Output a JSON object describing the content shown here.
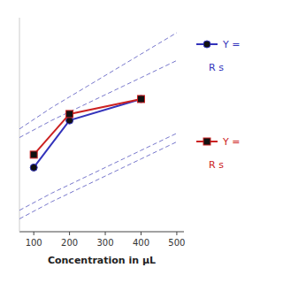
{
  "chart_data": {
    "type": "line",
    "xlabel": "Concentration in μL",
    "x": [
      100,
      200,
      400
    ],
    "xlim": [
      60,
      520
    ],
    "xticks": [
      100,
      200,
      300,
      400,
      500
    ],
    "ylim": [
      0.0,
      1.0
    ],
    "tick_labels": "x",
    "legend": "right",
    "series": [
      {
        "name": "Y =",
        "color": "#3333bb",
        "marker": "circle",
        "values": [
          0.3,
          0.52,
          0.62
        ]
      },
      {
        "name": "Y =",
        "color": "#cc2222",
        "marker": "square",
        "values": [
          0.36,
          0.55,
          0.62
        ]
      },
      {
        "color": "#7777cc",
        "line_style": "dashed",
        "x": [
          60,
          150,
          200,
          250,
          300,
          350,
          400,
          450,
          500
        ],
        "values": [
          0.48,
          0.58,
          0.63,
          0.68,
          0.73,
          0.78,
          0.83,
          0.88,
          0.93
        ]
      },
      {
        "color": "#7777cc",
        "line_style": "dashed",
        "x": [
          60,
          150,
          200,
          250,
          300,
          350,
          400,
          450,
          500
        ],
        "values": [
          0.44,
          0.52,
          0.56,
          0.6,
          0.64,
          0.68,
          0.72,
          0.76,
          0.8
        ]
      },
      {
        "color": "#7777cc",
        "line_style": "dashed",
        "x": [
          60,
          150,
          200,
          250,
          300,
          350,
          400,
          450,
          500
        ],
        "values": [
          0.1,
          0.18,
          0.22,
          0.26,
          0.3,
          0.34,
          0.38,
          0.42,
          0.46
        ]
      },
      {
        "color": "#7777cc",
        "line_style": "dashed",
        "x": [
          60,
          150,
          200,
          250,
          300,
          350,
          400,
          450,
          500
        ],
        "values": [
          0.06,
          0.14,
          0.18,
          0.22,
          0.26,
          0.3,
          0.34,
          0.38,
          0.42
        ]
      }
    ],
    "annotations": [
      {
        "text": "R s",
        "color": "#3333bb"
      },
      {
        "text": "R s",
        "color": "#cc2222"
      }
    ]
  }
}
